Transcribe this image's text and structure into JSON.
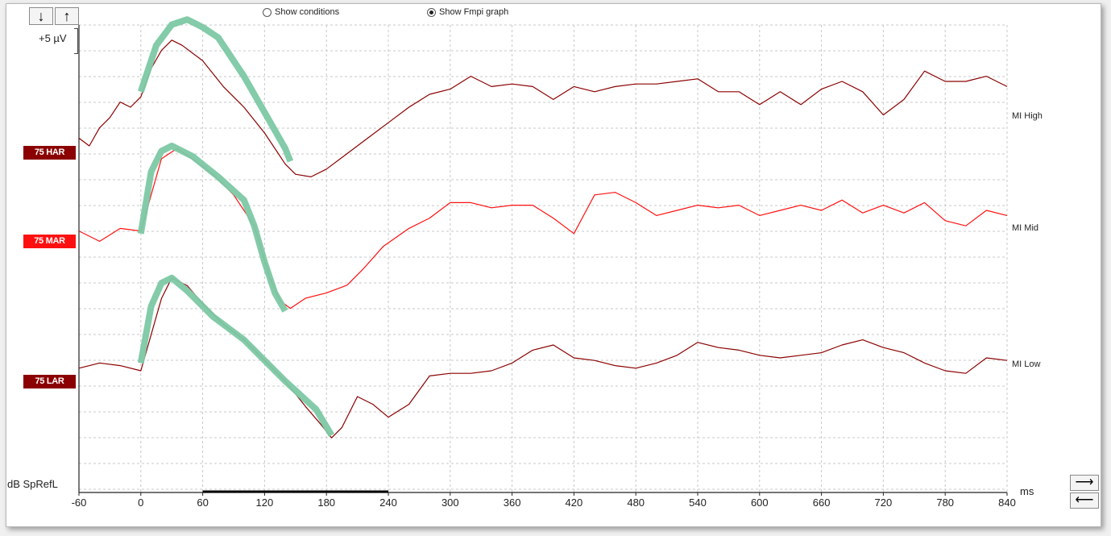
{
  "toolbar": {
    "down_label": "↓",
    "up_label": "↑",
    "show_conditions_label": "Show conditions",
    "show_fmpi_label": "Show Fmpi graph",
    "selected": "Show Fmpi graph"
  },
  "scale_label": "+5 µV",
  "nav": {
    "right_label": "⟶",
    "left_label": "⟵"
  },
  "colors": {
    "high": "#8b0000",
    "mid": "#ff1010",
    "low": "#8b0000",
    "overlay": "#7cc8a4",
    "grid": "#c8c8c8"
  },
  "chart_data": {
    "type": "line",
    "xlabel": "ms",
    "ylabel": "dB SpRefL",
    "xlim": [
      -60,
      840
    ],
    "xticks": [
      -60,
      0,
      60,
      120,
      180,
      240,
      300,
      360,
      420,
      480,
      540,
      600,
      660,
      720,
      780,
      840
    ],
    "grid": true,
    "series": [
      {
        "name": "MI High",
        "condition": "75 HAR",
        "color": "#8b0000",
        "points": [
          [
            -60,
            -0.2
          ],
          [
            -50,
            -0.5
          ],
          [
            -40,
            0.2
          ],
          [
            -30,
            0.6
          ],
          [
            -20,
            1.2
          ],
          [
            -10,
            1.0
          ],
          [
            0,
            1.4
          ],
          [
            10,
            2.5
          ],
          [
            20,
            3.2
          ],
          [
            30,
            3.6
          ],
          [
            40,
            3.4
          ],
          [
            60,
            2.8
          ],
          [
            80,
            1.8
          ],
          [
            100,
            1.0
          ],
          [
            120,
            0.0
          ],
          [
            140,
            -1.2
          ],
          [
            150,
            -1.6
          ],
          [
            165,
            -1.7
          ],
          [
            180,
            -1.4
          ],
          [
            200,
            -0.8
          ],
          [
            220,
            -0.2
          ],
          [
            240,
            0.4
          ],
          [
            260,
            1.0
          ],
          [
            280,
            1.5
          ],
          [
            300,
            1.7
          ],
          [
            320,
            2.2
          ],
          [
            340,
            1.8
          ],
          [
            360,
            1.9
          ],
          [
            380,
            1.8
          ],
          [
            400,
            1.3
          ],
          [
            420,
            1.8
          ],
          [
            440,
            1.6
          ],
          [
            460,
            1.8
          ],
          [
            480,
            1.9
          ],
          [
            500,
            1.9
          ],
          [
            520,
            2.0
          ],
          [
            540,
            2.1
          ],
          [
            560,
            1.6
          ],
          [
            580,
            1.6
          ],
          [
            600,
            1.1
          ],
          [
            620,
            1.6
          ],
          [
            640,
            1.1
          ],
          [
            660,
            1.7
          ],
          [
            680,
            2.0
          ],
          [
            700,
            1.6
          ],
          [
            720,
            0.7
          ],
          [
            740,
            1.3
          ],
          [
            760,
            2.4
          ],
          [
            780,
            2.0
          ],
          [
            800,
            2.0
          ],
          [
            820,
            2.2
          ],
          [
            840,
            1.8
          ]
        ]
      },
      {
        "name": "MI Mid",
        "condition": "75 MAR",
        "color": "#ff1010",
        "points": [
          [
            -60,
            0.2
          ],
          [
            -40,
            -0.2
          ],
          [
            -20,
            0.3
          ],
          [
            0,
            0.2
          ],
          [
            10,
            1.6
          ],
          [
            20,
            3.0
          ],
          [
            35,
            3.4
          ],
          [
            50,
            3.0
          ],
          [
            70,
            2.4
          ],
          [
            90,
            1.6
          ],
          [
            110,
            0.4
          ],
          [
            125,
            -1.6
          ],
          [
            135,
            -2.5
          ],
          [
            145,
            -2.8
          ],
          [
            160,
            -2.4
          ],
          [
            180,
            -2.2
          ],
          [
            200,
            -1.9
          ],
          [
            215,
            -1.3
          ],
          [
            235,
            -0.4
          ],
          [
            260,
            0.3
          ],
          [
            280,
            0.7
          ],
          [
            300,
            1.3
          ],
          [
            320,
            1.3
          ],
          [
            340,
            1.1
          ],
          [
            360,
            1.2
          ],
          [
            380,
            1.2
          ],
          [
            400,
            0.7
          ],
          [
            420,
            0.1
          ],
          [
            440,
            1.6
          ],
          [
            460,
            1.7
          ],
          [
            480,
            1.3
          ],
          [
            500,
            0.8
          ],
          [
            520,
            1.0
          ],
          [
            540,
            1.2
          ],
          [
            560,
            1.1
          ],
          [
            580,
            1.2
          ],
          [
            600,
            0.8
          ],
          [
            620,
            1.0
          ],
          [
            640,
            1.2
          ],
          [
            660,
            1.0
          ],
          [
            680,
            1.4
          ],
          [
            700,
            0.9
          ],
          [
            720,
            1.2
          ],
          [
            740,
            0.9
          ],
          [
            760,
            1.3
          ],
          [
            780,
            0.6
          ],
          [
            800,
            0.4
          ],
          [
            820,
            1.0
          ],
          [
            840,
            0.8
          ]
        ]
      },
      {
        "name": "MI Low",
        "condition": "75 LAR",
        "color": "#8b0000",
        "points": [
          [
            -60,
            0.1
          ],
          [
            -40,
            0.3
          ],
          [
            -20,
            0.2
          ],
          [
            0,
            0.0
          ],
          [
            10,
            1.4
          ],
          [
            20,
            2.8
          ],
          [
            30,
            3.6
          ],
          [
            45,
            3.3
          ],
          [
            60,
            2.6
          ],
          [
            80,
            1.8
          ],
          [
            100,
            1.2
          ],
          [
            120,
            0.4
          ],
          [
            140,
            -0.4
          ],
          [
            160,
            -1.4
          ],
          [
            175,
            -2.1
          ],
          [
            185,
            -2.6
          ],
          [
            195,
            -2.2
          ],
          [
            210,
            -1.0
          ],
          [
            225,
            -1.3
          ],
          [
            240,
            -1.8
          ],
          [
            260,
            -1.3
          ],
          [
            280,
            -0.2
          ],
          [
            300,
            -0.1
          ],
          [
            320,
            -0.1
          ],
          [
            340,
            0.0
          ],
          [
            360,
            0.3
          ],
          [
            380,
            0.8
          ],
          [
            400,
            1.0
          ],
          [
            420,
            0.5
          ],
          [
            440,
            0.4
          ],
          [
            460,
            0.2
          ],
          [
            480,
            0.1
          ],
          [
            500,
            0.3
          ],
          [
            520,
            0.6
          ],
          [
            540,
            1.1
          ],
          [
            560,
            0.9
          ],
          [
            580,
            0.8
          ],
          [
            600,
            0.6
          ],
          [
            620,
            0.5
          ],
          [
            640,
            0.6
          ],
          [
            660,
            0.7
          ],
          [
            680,
            1.0
          ],
          [
            700,
            1.2
          ],
          [
            720,
            0.9
          ],
          [
            740,
            0.7
          ],
          [
            760,
            0.3
          ],
          [
            780,
            0.0
          ],
          [
            800,
            -0.1
          ],
          [
            820,
            0.5
          ],
          [
            840,
            0.4
          ]
        ]
      }
    ],
    "fmpi_overlay": [
      {
        "trace": "MI High",
        "points": [
          [
            0,
            1.6
          ],
          [
            15,
            3.4
          ],
          [
            30,
            4.2
          ],
          [
            45,
            4.4
          ],
          [
            60,
            4.1
          ],
          [
            75,
            3.7
          ],
          [
            100,
            2.2
          ],
          [
            120,
            0.8
          ],
          [
            140,
            -0.6
          ],
          [
            145,
            -1.1
          ]
        ]
      },
      {
        "trace": "MI Mid",
        "points": [
          [
            0,
            0.1
          ],
          [
            10,
            2.5
          ],
          [
            20,
            3.3
          ],
          [
            30,
            3.5
          ],
          [
            50,
            3.1
          ],
          [
            75,
            2.3
          ],
          [
            100,
            1.4
          ],
          [
            110,
            0.4
          ],
          [
            120,
            -1.0
          ],
          [
            130,
            -2.2
          ],
          [
            140,
            -2.9
          ]
        ]
      },
      {
        "trace": "MI Low",
        "points": [
          [
            0,
            0.3
          ],
          [
            10,
            2.5
          ],
          [
            20,
            3.4
          ],
          [
            30,
            3.6
          ],
          [
            45,
            3.1
          ],
          [
            70,
            2.1
          ],
          [
            100,
            1.2
          ],
          [
            140,
            -0.4
          ],
          [
            170,
            -1.5
          ],
          [
            185,
            -2.5
          ]
        ]
      }
    ]
  }
}
